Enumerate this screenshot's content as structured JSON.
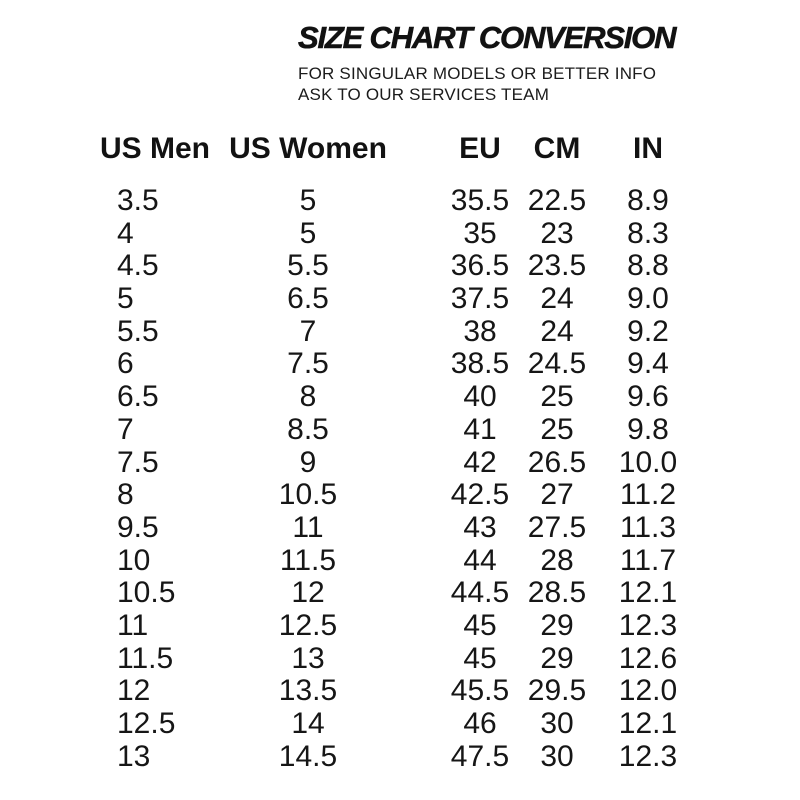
{
  "header": {
    "title": "SIZE CHART CONVERSION",
    "subtitle_line1": "FOR SINGULAR MODELS OR BETTER INFO",
    "subtitle_line2": "ASK TO OUR SERVICES TEAM"
  },
  "colors": {
    "background": "#ffffff",
    "text": "#141414"
  },
  "chart_data": {
    "type": "table",
    "title": "SIZE CHART CONVERSION",
    "columns": [
      "US Men",
      "US Women",
      "EU",
      "CM",
      "IN"
    ],
    "rows": [
      [
        "3.5",
        "5",
        "35.5",
        "22.5",
        "8.9"
      ],
      [
        "4",
        "5",
        "35",
        "23",
        "8.3"
      ],
      [
        "4.5",
        "5.5",
        "36.5",
        "23.5",
        "8.8"
      ],
      [
        "5",
        "6.5",
        "37.5",
        "24",
        "9.0"
      ],
      [
        "5.5",
        "7",
        "38",
        "24",
        "9.2"
      ],
      [
        "6",
        "7.5",
        "38.5",
        "24.5",
        "9.4"
      ],
      [
        "6.5",
        "8",
        "40",
        "25",
        "9.6"
      ],
      [
        "7",
        "8.5",
        "41",
        "25",
        "9.8"
      ],
      [
        "7.5",
        "9",
        "42",
        "26.5",
        "10.0"
      ],
      [
        "8",
        "10.5",
        "42.5",
        "27",
        "11.2"
      ],
      [
        "9.5",
        "11",
        "43",
        "27.5",
        "11.3"
      ],
      [
        "10",
        "11.5",
        "44",
        "28",
        "11.7"
      ],
      [
        "10.5",
        "12",
        "44.5",
        "28.5",
        "12.1"
      ],
      [
        "11",
        "12.5",
        "45",
        "29",
        "12.3"
      ],
      [
        "11.5",
        "13",
        "45",
        "29",
        "12.6"
      ],
      [
        "12",
        "13.5",
        "45.5",
        "29.5",
        "12.0"
      ],
      [
        "12.5",
        "14",
        "46",
        "30",
        "12.1"
      ],
      [
        "13",
        "14.5",
        "47.5",
        "30",
        "12.3"
      ]
    ]
  }
}
